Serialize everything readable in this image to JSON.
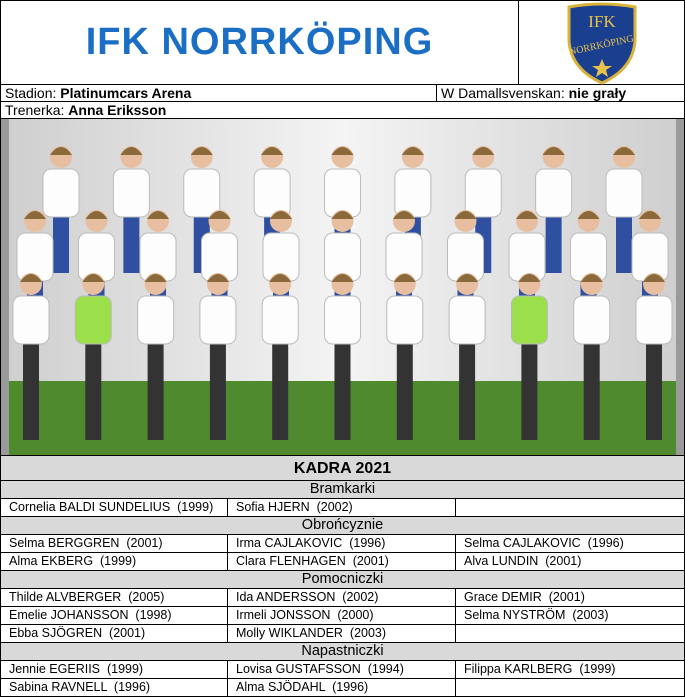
{
  "header": {
    "title": "IFK NORRKÖPING",
    "logo_text": [
      "IFK",
      "NORRKÖPING"
    ]
  },
  "info": {
    "stadium_label": "Stadion:",
    "stadium": "Platinumcars Arena",
    "league_label": "W Damallsvenskan:",
    "league_status": "nie grały",
    "coach_label": "Trenerka:",
    "coach": "Anna Eriksson"
  },
  "squad": {
    "title": "KADRA 2021",
    "sections": [
      {
        "name": "Bramkarki",
        "players": [
          "Cornelia BALDI SUNDELIUS  (1999)",
          "Sofia HJERN  (2002)"
        ]
      },
      {
        "name": "Obrońcyznie",
        "players": [
          "Selma BERGGREN  (2001)",
          "Irma CAJLAKOVIC  (1996)",
          "Selma CAJLAKOVIC  (1996)",
          "Alma EKBERG  (1999)",
          "Clara FLENHAGEN  (2001)",
          "Alva LUNDIN  (2001)"
        ]
      },
      {
        "name": "Pomocniczki",
        "players": [
          "Thilde ALVBERGER  (2005)",
          "Ida ANDERSSON  (2002)",
          "Grace DEMIR  (2001)",
          "Emelie JOHANSSON  (1998)",
          "Irmeli JONSSON  (2000)",
          "Selma NYSTRÖM  (2003)",
          "Ebba SJÖGREN  (2001)",
          "Molly WIKLANDER  (2003)"
        ]
      },
      {
        "name": "Napastniczki",
        "players": [
          "Jennie EGERIIS  (1999)",
          "Lovisa GUSTAFSSON  (1994)",
          "Filippa KARLBERG  (1999)",
          "Sabina RAVNELL  (1996)",
          "Alma SJÖDAHL  (1996)"
        ]
      }
    ]
  }
}
